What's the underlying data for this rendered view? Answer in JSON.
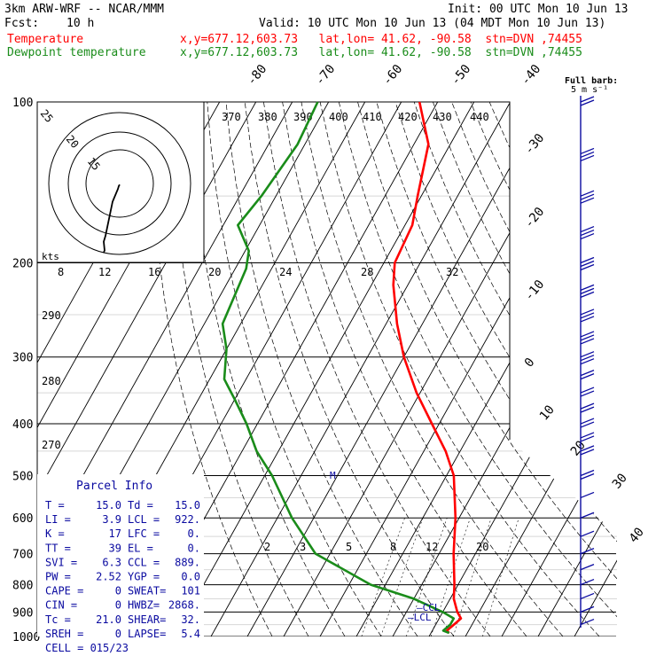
{
  "header": {
    "model": "3km ARW-WRF -- NCAR/MMM",
    "init": "Init: 00 UTC Mon 10 Jun 13",
    "fcst_label": "Fcst:",
    "fcst_value": "10 h",
    "valid": "Valid: 10 UTC Mon 10 Jun 13 (04 MDT Mon 10 Jun 13)",
    "temp_line": {
      "name": "Temperature",
      "info": "x,y=677.12,603.73   lat,lon= 41.62, -90.58  stn=DVN ,74455"
    },
    "dew_line": {
      "name": "Dewpoint temperature",
      "info": "x,y=677.12,603.73   lat,lon= 41.62, -90.58  stn=DVN ,74455"
    }
  },
  "colors": {
    "temperature": "#ff0000",
    "dewpoint": "#1a8c1a",
    "parcel_text": "#0a0aa0",
    "wind": "#0a0aa0"
  },
  "wind_label": {
    "line1": "Full barb:",
    "line2": "5 m s⁻¹"
  },
  "hodograph": {
    "units": "kts",
    "ring_labels": [
      "25",
      "20",
      "15"
    ],
    "x_tick_labels": [
      "8",
      "12",
      "16",
      "20",
      "24",
      "28",
      "32"
    ]
  },
  "parcel": {
    "title": "Parcel Info",
    "rows": [
      {
        "l1": "T  =",
        "v1": "15.0",
        "l2": "Td =",
        "v2": "15.0"
      },
      {
        "l1": "LI =",
        "v1": "3.9",
        "l2": "LCL =",
        "v2": "922."
      },
      {
        "l1": "K  =",
        "v1": "17",
        "l2": "LFC =",
        "v2": "0."
      },
      {
        "l1": "TT =",
        "v1": "39",
        "l2": "EL  =",
        "v2": "0."
      },
      {
        "l1": "SVI =",
        "v1": "6.3",
        "l2": "CCL =",
        "v2": "889."
      },
      {
        "l1": "PW =",
        "v1": "2.52",
        "l2": "YGP =",
        "v2": "0.0"
      },
      {
        "l1": "CAPE =",
        "v1": "0",
        "l2": "SWEAT=",
        "v2": "101"
      },
      {
        "l1": "CIN =",
        "v1": "0",
        "l2": "HWBZ=",
        "v2": "2868."
      },
      {
        "l1": "Tc =",
        "v1": "21.0",
        "l2": "SHEAR=",
        "v2": "32."
      },
      {
        "l1": "SREH =",
        "v1": "0",
        "l2": "LAPSE=",
        "v2": "5.4"
      }
    ],
    "cell": "CELL = 015/23"
  },
  "chart_data": {
    "type": "line",
    "subtype": "skew-T log-P diagram",
    "y_axis": {
      "label": "",
      "scale": "log",
      "range_hpa": [
        1000,
        100
      ],
      "ticks": [
        100,
        200,
        300,
        400,
        500,
        600,
        700,
        800,
        900,
        1000
      ]
    },
    "isotherm_labels": [
      "-80",
      "-70",
      "-60",
      "-50",
      "-40",
      "-30",
      "-20",
      "-10",
      "0",
      "10",
      "20",
      "30",
      "40"
    ],
    "dry_adiabat_labels": [
      "370",
      "380",
      "390",
      "400",
      "410",
      "420",
      "430",
      "440",
      "290",
      "280",
      "270"
    ],
    "mixing_ratio_labels": [
      "2",
      "3",
      "5",
      "8",
      "12",
      "20"
    ],
    "level_markers": [
      "M",
      "CCL",
      "LCL"
    ],
    "series": [
      {
        "name": "Temperature",
        "color": "#ff0000",
        "points": [
          [
            100,
            -75
          ],
          [
            120,
            -66
          ],
          [
            150,
            -61
          ],
          [
            170,
            -58
          ],
          [
            200,
            -57
          ],
          [
            220,
            -54
          ],
          [
            260,
            -47
          ],
          [
            300,
            -40
          ],
          [
            350,
            -31
          ],
          [
            400,
            -22
          ],
          [
            450,
            -14
          ],
          [
            500,
            -8
          ],
          [
            600,
            -1
          ],
          [
            700,
            4
          ],
          [
            800,
            9
          ],
          [
            850,
            11
          ],
          [
            900,
            14
          ],
          [
            925,
            16
          ],
          [
            950,
            15
          ],
          [
            975,
            14
          ],
          [
            985,
            15
          ]
        ]
      },
      {
        "name": "Dewpoint temperature",
        "color": "#1a8c1a",
        "points": [
          [
            100,
            -103
          ],
          [
            120,
            -102
          ],
          [
            150,
            -104
          ],
          [
            170,
            -106
          ],
          [
            190,
            -99
          ],
          [
            205,
            -97
          ],
          [
            260,
            -95
          ],
          [
            290,
            -90
          ],
          [
            330,
            -86
          ],
          [
            360,
            -80
          ],
          [
            400,
            -73
          ],
          [
            450,
            -66
          ],
          [
            500,
            -58
          ],
          [
            600,
            -46
          ],
          [
            700,
            -34
          ],
          [
            800,
            -14
          ],
          [
            850,
            0
          ],
          [
            900,
            10
          ],
          [
            925,
            14
          ],
          [
            950,
            14
          ],
          [
            975,
            13
          ],
          [
            985,
            15
          ]
        ]
      }
    ],
    "hodograph_trace": [
      [
        0,
        -35
      ],
      [
        -1,
        -38
      ],
      [
        -2,
        -44
      ],
      [
        -8,
        -70
      ],
      [
        -16,
        -140
      ],
      [
        -18,
        -152
      ],
      [
        -17,
        -170
      ],
      [
        -18,
        -174
      ]
    ],
    "wind_barbs": [
      {
        "p": 100,
        "spd": 12
      },
      {
        "p": 125,
        "spd": 14
      },
      {
        "p": 150,
        "spd": 16
      },
      {
        "p": 175,
        "spd": 16
      },
      {
        "p": 200,
        "spd": 18
      },
      {
        "p": 225,
        "spd": 18
      },
      {
        "p": 250,
        "spd": 16
      },
      {
        "p": 275,
        "spd": 14
      },
      {
        "p": 300,
        "spd": 14
      },
      {
        "p": 325,
        "spd": 12
      },
      {
        "p": 350,
        "spd": 12
      },
      {
        "p": 375,
        "spd": 12
      },
      {
        "p": 400,
        "spd": 10
      },
      {
        "p": 425,
        "spd": 10
      },
      {
        "p": 450,
        "spd": 8
      },
      {
        "p": 500,
        "spd": 8
      },
      {
        "p": 550,
        "spd": 6
      },
      {
        "p": 600,
        "spd": 4
      },
      {
        "p": 650,
        "spd": 4
      },
      {
        "p": 700,
        "spd": 4
      },
      {
        "p": 750,
        "spd": 4
      },
      {
        "p": 800,
        "spd": 4
      },
      {
        "p": 850,
        "spd": 3
      },
      {
        "p": 900,
        "spd": 3
      },
      {
        "p": 950,
        "spd": 3
      }
    ]
  }
}
